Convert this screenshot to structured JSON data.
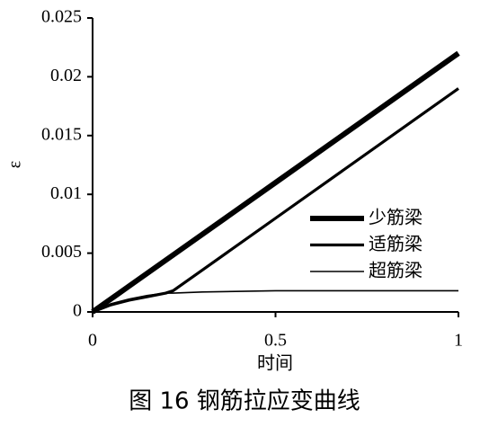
{
  "chart_data": {
    "type": "line",
    "title": "图 16  钢筋拉应变曲线",
    "x_label": "时间",
    "y_label": "ε",
    "x": [
      0,
      0.05,
      0.1,
      0.15,
      0.2,
      0.22,
      0.3,
      0.5,
      1
    ],
    "series": [
      {
        "name": "少筋梁",
        "color": "#000000",
        "width": 6,
        "values": [
          0,
          0.0011,
          0.0022,
          0.0033,
          0.0044,
          0.00484,
          0.0066,
          0.011,
          0.022
        ]
      },
      {
        "name": "适筋梁",
        "color": "#000000",
        "width": 3.2,
        "values": [
          0,
          0.0006,
          0.001,
          0.0013,
          0.0016,
          0.0018,
          0.00356,
          0.00797,
          0.019
        ]
      },
      {
        "name": "超筋梁",
        "color": "#000000",
        "width": 1.6,
        "values": [
          0,
          0.0007,
          0.0011,
          0.0014,
          0.0016,
          0.0016,
          0.0017,
          0.0018,
          0.0018
        ]
      }
    ],
    "xlim": [
      0,
      1
    ],
    "xticks": [
      0,
      0.5,
      1
    ],
    "ylim": [
      0,
      0.025
    ],
    "yticks": [
      0,
      0.005,
      0.01,
      0.015,
      0.02,
      0.025
    ],
    "legend": "lower right"
  }
}
